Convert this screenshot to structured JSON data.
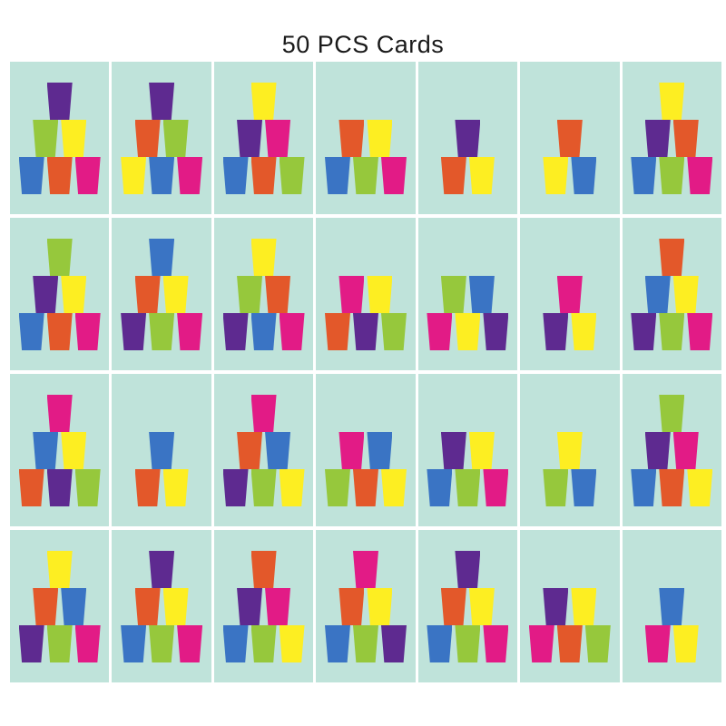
{
  "title": "50 PCS  Cards",
  "palette": {
    "purple": "#5e2a90",
    "green": "#96c83c",
    "yellow": "#fdee22",
    "blue": "#3a74c4",
    "orange": "#e3582a",
    "pink": "#e21b86"
  },
  "cards": [
    [
      {
        "rows": [
          [
            "purple"
          ],
          [
            "green",
            "yellow"
          ],
          [
            "blue",
            "orange",
            "pink"
          ]
        ]
      },
      {
        "rows": [
          [
            "purple"
          ],
          [
            "orange",
            "green"
          ],
          [
            "yellow",
            "blue",
            "pink"
          ]
        ]
      },
      {
        "rows": [
          [
            "yellow"
          ],
          [
            "purple",
            "pink"
          ],
          [
            "blue",
            "orange",
            "green"
          ]
        ]
      },
      {
        "rows": [
          [
            "orange",
            "yellow"
          ],
          [
            "blue",
            "green",
            "pink"
          ]
        ]
      },
      {
        "rows": [
          [
            "purple"
          ],
          [
            "orange",
            "yellow"
          ]
        ]
      },
      {
        "rows": [
          [
            "orange"
          ],
          [
            "yellow",
            "blue"
          ]
        ]
      },
      {
        "rows": [
          [
            "yellow"
          ],
          [
            "purple",
            "orange"
          ],
          [
            "blue",
            "green",
            "pink"
          ]
        ]
      }
    ],
    [
      {
        "rows": [
          [
            "green"
          ],
          [
            "purple",
            "yellow"
          ],
          [
            "blue",
            "orange",
            "pink"
          ]
        ]
      },
      {
        "rows": [
          [
            "blue"
          ],
          [
            "orange",
            "yellow"
          ],
          [
            "purple",
            "green",
            "pink"
          ]
        ]
      },
      {
        "rows": [
          [
            "yellow"
          ],
          [
            "green",
            "orange"
          ],
          [
            "purple",
            "blue",
            "pink"
          ]
        ]
      },
      {
        "rows": [
          [
            "pink",
            "yellow"
          ],
          [
            "orange",
            "purple",
            "green"
          ]
        ]
      },
      {
        "rows": [
          [
            "green",
            "blue"
          ],
          [
            "pink",
            "yellow",
            "purple"
          ]
        ]
      },
      {
        "rows": [
          [
            "pink"
          ],
          [
            "purple",
            "yellow"
          ]
        ]
      },
      {
        "rows": [
          [
            "orange"
          ],
          [
            "blue",
            "yellow"
          ],
          [
            "purple",
            "green",
            "pink"
          ]
        ]
      }
    ],
    [
      {
        "rows": [
          [
            "pink"
          ],
          [
            "blue",
            "yellow"
          ],
          [
            "orange",
            "purple",
            "green"
          ]
        ]
      },
      {
        "rows": [
          [
            "blue"
          ],
          [
            "orange",
            "yellow"
          ]
        ]
      },
      {
        "rows": [
          [
            "pink"
          ],
          [
            "orange",
            "blue"
          ],
          [
            "purple",
            "green",
            "yellow"
          ]
        ]
      },
      {
        "rows": [
          [
            "pink",
            "blue"
          ],
          [
            "green",
            "orange",
            "yellow"
          ]
        ]
      },
      {
        "rows": [
          [
            "purple",
            "yellow"
          ],
          [
            "blue",
            "green",
            "pink"
          ]
        ]
      },
      {
        "rows": [
          [
            "yellow"
          ],
          [
            "green",
            "blue"
          ]
        ]
      },
      {
        "rows": [
          [
            "green"
          ],
          [
            "purple",
            "pink"
          ],
          [
            "blue",
            "orange",
            "yellow"
          ]
        ]
      }
    ],
    [
      {
        "rows": [
          [
            "yellow"
          ],
          [
            "orange",
            "blue"
          ],
          [
            "purple",
            "green",
            "pink"
          ]
        ]
      },
      {
        "rows": [
          [
            "purple"
          ],
          [
            "orange",
            "yellow"
          ],
          [
            "blue",
            "green",
            "pink"
          ]
        ]
      },
      {
        "rows": [
          [
            "orange"
          ],
          [
            "purple",
            "pink"
          ],
          [
            "blue",
            "green",
            "yellow"
          ]
        ]
      },
      {
        "rows": [
          [
            "pink"
          ],
          [
            "orange",
            "yellow"
          ],
          [
            "blue",
            "green",
            "purple"
          ]
        ]
      },
      {
        "rows": [
          [
            "purple"
          ],
          [
            "orange",
            "yellow"
          ],
          [
            "blue",
            "green",
            "pink"
          ]
        ]
      },
      {
        "rows": [
          [
            "purple",
            "yellow"
          ],
          [
            "pink",
            "orange",
            "green"
          ]
        ]
      },
      {
        "rows": [
          [
            "blue"
          ],
          [
            "pink",
            "yellow"
          ]
        ]
      }
    ]
  ]
}
